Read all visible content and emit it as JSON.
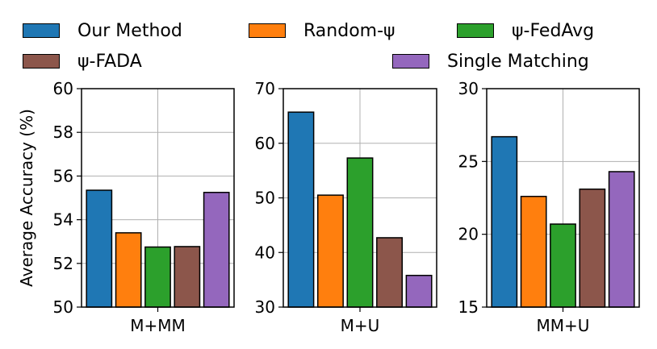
{
  "legend": [
    {
      "name": "Our Method",
      "color": "#1f77b4"
    },
    {
      "name": "Random-ψ",
      "color": "#ff7f0e"
    },
    {
      "name": "ψ-FedAvg",
      "color": "#2ca02c"
    },
    {
      "name": "ψ-FADA",
      "color": "#8c564b"
    },
    {
      "name": "Single Matching",
      "color": "#9467bd"
    }
  ],
  "chart_data": [
    {
      "type": "bar",
      "category": "M+MM",
      "ylabel": "Average Accuracy (%)",
      "ylim": [
        50,
        60
      ],
      "yticks": [
        "50",
        "52",
        "54",
        "56",
        "58",
        "60"
      ],
      "grid": true,
      "series": [
        {
          "name": "Our Method",
          "value": 55.35
        },
        {
          "name": "Random-ψ",
          "value": 53.4
        },
        {
          "name": "ψ-FedAvg",
          "value": 52.75
        },
        {
          "name": "ψ-FADA",
          "value": 52.77
        },
        {
          "name": "Single Matching",
          "value": 55.25
        }
      ]
    },
    {
      "type": "bar",
      "category": "M+U",
      "ylabel": "",
      "ylim": [
        30,
        70
      ],
      "yticks": [
        "30",
        "40",
        "50",
        "60",
        "70"
      ],
      "grid": true,
      "series": [
        {
          "name": "Our Method",
          "value": 65.7
        },
        {
          "name": "Random-ψ",
          "value": 50.5
        },
        {
          "name": "ψ-FedAvg",
          "value": 57.3
        },
        {
          "name": "ψ-FADA",
          "value": 42.7
        },
        {
          "name": "Single Matching",
          "value": 35.8
        }
      ]
    },
    {
      "type": "bar",
      "category": "MM+U",
      "ylabel": "",
      "ylim": [
        15,
        30
      ],
      "yticks": [
        "15",
        "20",
        "25",
        "30"
      ],
      "grid": true,
      "series": [
        {
          "name": "Our Method",
          "value": 26.7
        },
        {
          "name": "Random-ψ",
          "value": 22.6
        },
        {
          "name": "ψ-FedAvg",
          "value": 20.7
        },
        {
          "name": "ψ-FADA",
          "value": 23.1
        },
        {
          "name": "Single Matching",
          "value": 24.3
        }
      ]
    }
  ]
}
